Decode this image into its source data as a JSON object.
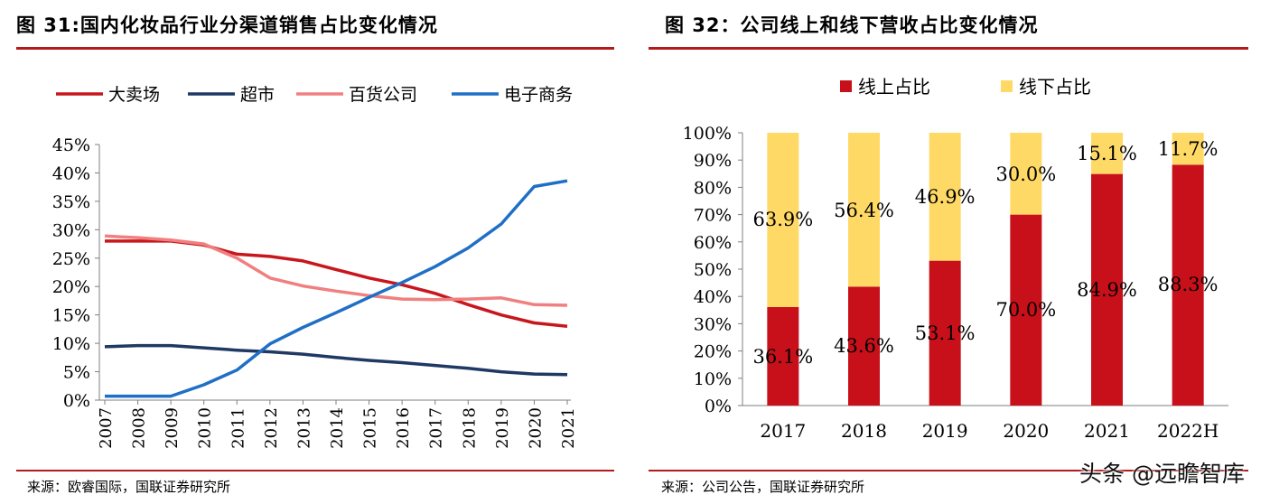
{
  "left": {
    "title": "图 31:国内化妆品行业分渠道销售占比变化情况",
    "source": "来源：欧睿国际，国联证券研究所"
  },
  "right": {
    "title": "图 32：公司线上和线下营收占比变化情况",
    "source": "来源：公司公告，国联证券研究所"
  },
  "watermark": "头条 @远瞻智库",
  "chart_data": [
    {
      "type": "line",
      "x": [
        "2007",
        "2008",
        "2009",
        "2010",
        "2011",
        "2012",
        "2013",
        "2014",
        "2015",
        "2016",
        "2017",
        "2018",
        "2019",
        "2020",
        "2021"
      ],
      "ylim": [
        0,
        45
      ],
      "yticks": [
        0,
        5,
        10,
        15,
        20,
        25,
        30,
        35,
        40,
        45
      ],
      "ytick_suffix": "%",
      "grid": false,
      "legend_position": "top",
      "series": [
        {
          "name": "大卖场",
          "color": "#c8161d",
          "values": [
            28.0,
            28.0,
            28.0,
            27.3,
            25.7,
            25.3,
            24.5,
            23.0,
            21.5,
            20.3,
            18.8,
            16.8,
            15.0,
            13.6,
            13.0
          ]
        },
        {
          "name": "超市",
          "color": "#1f3864",
          "values": [
            9.4,
            9.6,
            9.6,
            9.2,
            8.8,
            8.5,
            8.1,
            7.5,
            7.0,
            6.6,
            6.1,
            5.6,
            5.0,
            4.6,
            4.5
          ]
        },
        {
          "name": "百货公司",
          "color": "#f08080",
          "values": [
            28.9,
            28.6,
            28.2,
            27.5,
            25.0,
            21.5,
            20.1,
            19.2,
            18.4,
            17.8,
            17.7,
            17.8,
            18.0,
            16.8,
            16.7
          ]
        },
        {
          "name": "电子商务",
          "color": "#1f6fc6",
          "values": [
            0.7,
            0.7,
            0.7,
            2.7,
            5.3,
            9.9,
            12.8,
            15.4,
            18.1,
            20.7,
            23.5,
            26.8,
            31.0,
            37.6,
            38.6
          ]
        }
      ]
    },
    {
      "type": "bar",
      "stacked": true,
      "categories": [
        "2017",
        "2018",
        "2019",
        "2020",
        "2021",
        "2022H"
      ],
      "ylim": [
        0,
        100
      ],
      "yticks": [
        0,
        10,
        20,
        30,
        40,
        50,
        60,
        70,
        80,
        90,
        100
      ],
      "ytick_suffix": "%",
      "legend_position": "top",
      "series": [
        {
          "name": "线上占比",
          "color": "#c8101a",
          "values": [
            36.1,
            43.6,
            53.1,
            70.0,
            84.9,
            88.3
          ],
          "labels": [
            "36.1%",
            "43.6%",
            "53.1%",
            "70.0%",
            "84.9%",
            "88.3%"
          ]
        },
        {
          "name": "线下占比",
          "color": "#ffd966",
          "values": [
            63.9,
            56.4,
            46.9,
            30.0,
            15.1,
            11.7
          ],
          "labels": [
            "63.9%",
            "56.4%",
            "46.9%",
            "30.0%",
            "15.1%",
            "11.7%"
          ]
        }
      ]
    }
  ]
}
